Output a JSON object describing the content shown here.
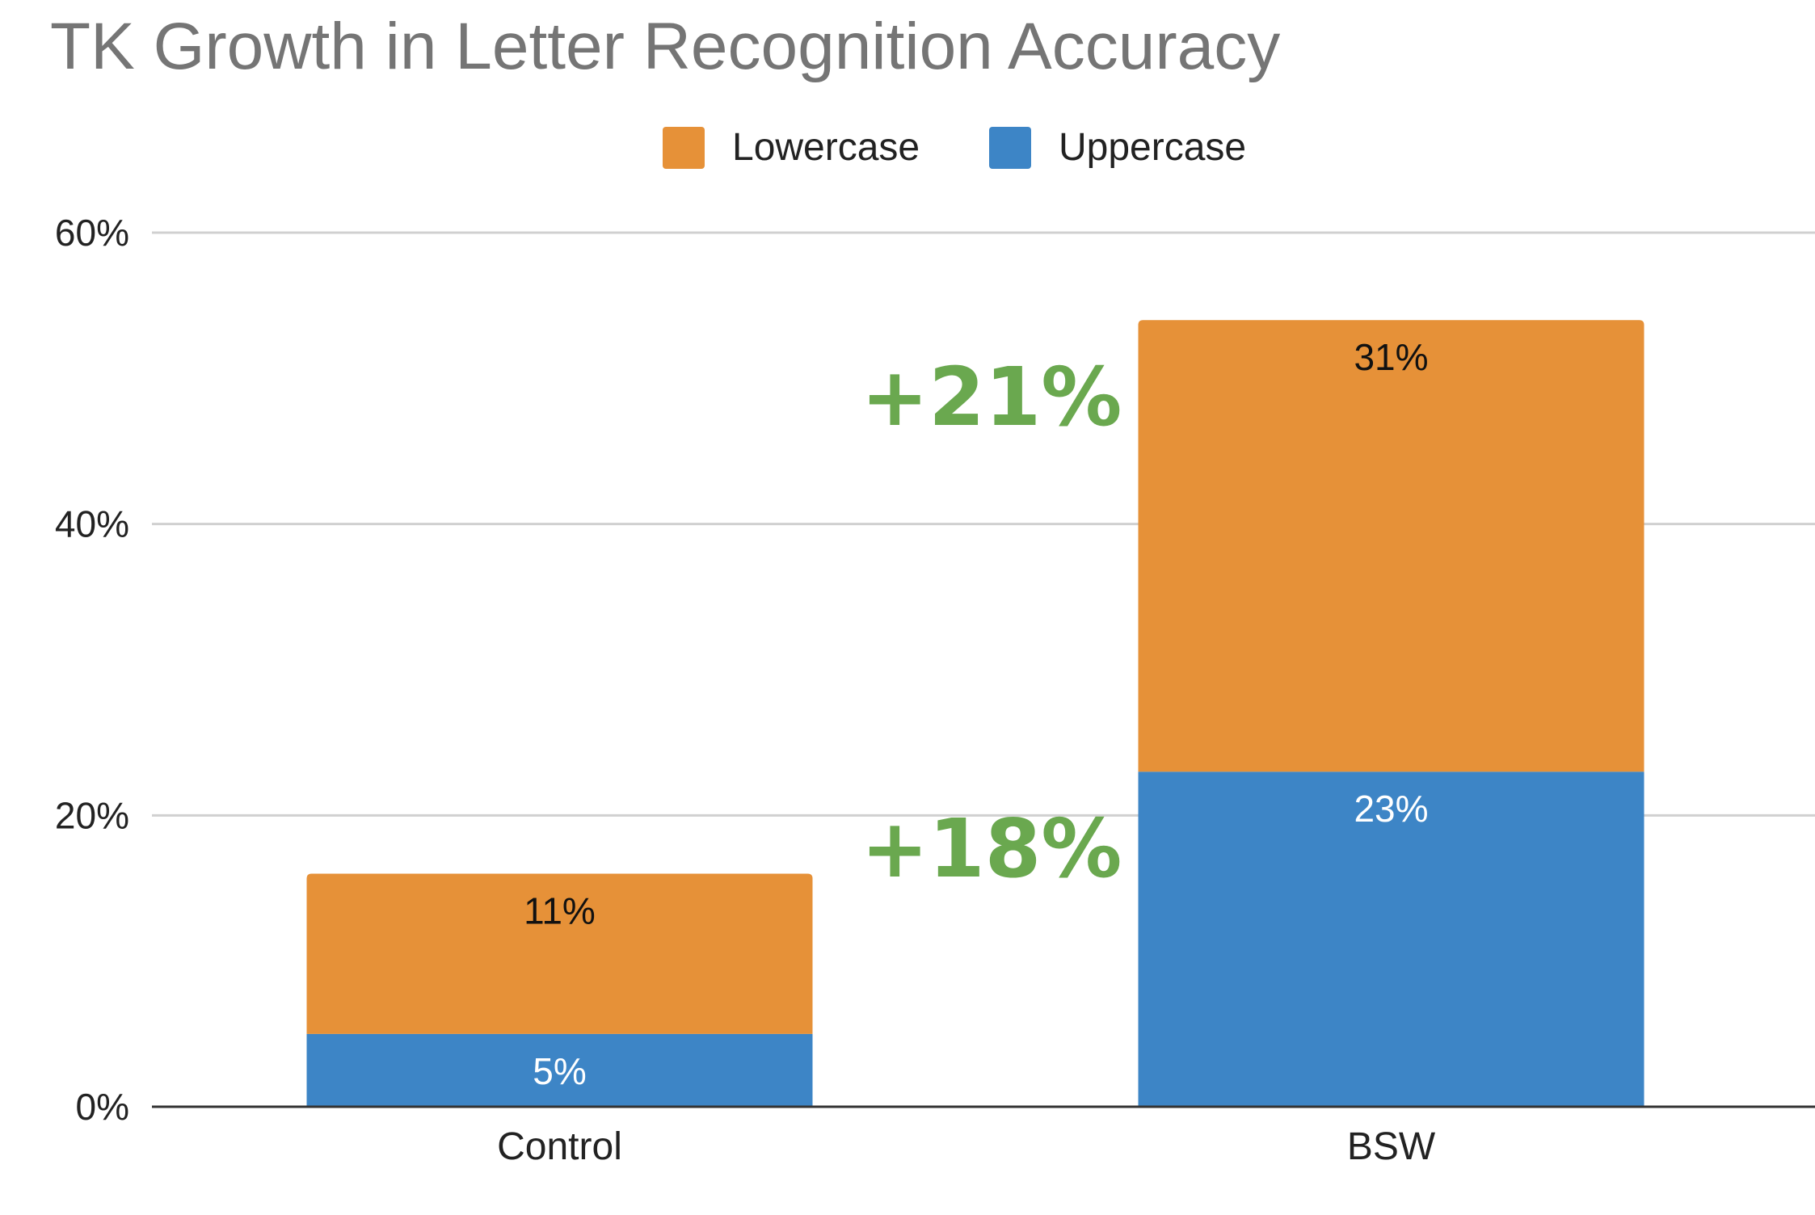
{
  "chart_data": {
    "type": "bar",
    "stacked": true,
    "title": "TK Growth in Letter Recognition Accuracy",
    "categories": [
      "Control",
      "BSW"
    ],
    "series": [
      {
        "name": "Uppercase",
        "color": "#3d85c6",
        "values": [
          5,
          23
        ],
        "labels": [
          "5%",
          "23%"
        ],
        "label_color": "#ffffff"
      },
      {
        "name": "Lowercase",
        "color": "#e69138",
        "values": [
          11,
          31
        ],
        "labels": [
          "11%",
          "31%"
        ],
        "label_color": "#111111"
      }
    ],
    "legend": {
      "position": "top",
      "entries": [
        "Lowercase",
        "Uppercase"
      ]
    },
    "ylim": [
      0,
      60
    ],
    "yticks": [
      0,
      20,
      40,
      60
    ],
    "ytick_labels": [
      "0%",
      "20%",
      "40%",
      "60%"
    ],
    "grid": true,
    "annotations": [
      {
        "text": "+21%",
        "series": "Lowercase",
        "color": "#6aa84f"
      },
      {
        "text": "+18%",
        "series": "Uppercase",
        "color": "#6aa84f"
      }
    ]
  }
}
